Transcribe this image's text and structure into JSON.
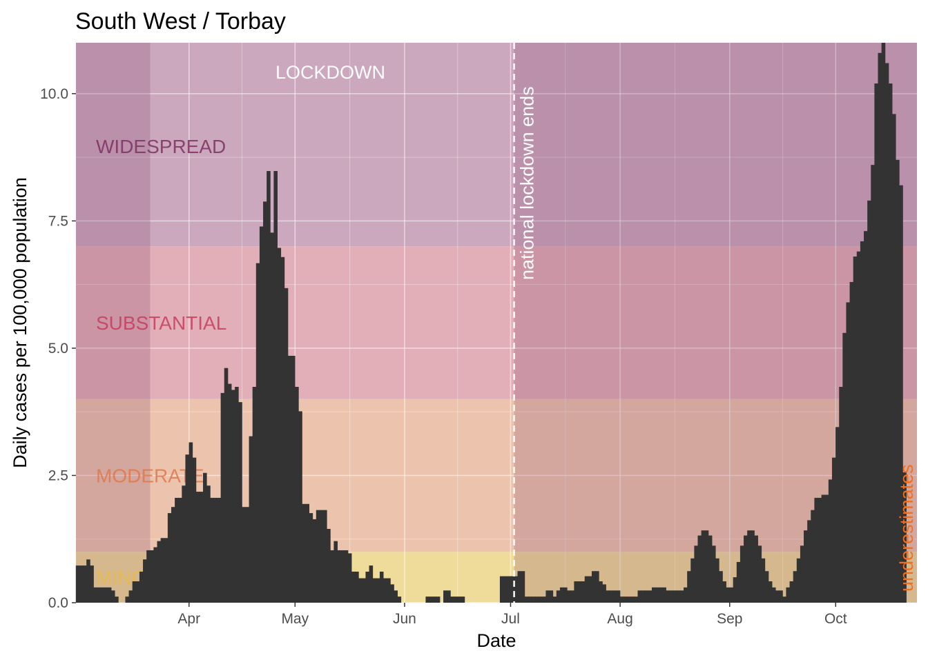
{
  "chart_data": {
    "type": "bar",
    "title": "South West / Torbay",
    "xlabel": "Date",
    "ylabel": "Daily cases per 100,000 population",
    "ylim": [
      0,
      11
    ],
    "yticks": [
      0,
      2.5,
      5,
      7.5,
      10
    ],
    "ytick_labels": [
      "0.0",
      "2.5",
      "5.0",
      "7.5",
      "10.0"
    ],
    "xlim": [
      0,
      238
    ],
    "xticks": [
      {
        "label": "Apr",
        "day": 32
      },
      {
        "label": "May",
        "day": 62
      },
      {
        "label": "Jun",
        "day": 93
      },
      {
        "label": "Jul",
        "day": 123
      },
      {
        "label": "Aug",
        "day": 154
      },
      {
        "label": "Sep",
        "day": 185
      },
      {
        "label": "Oct",
        "day": 215
      }
    ],
    "bands": [
      {
        "label": "MINOR",
        "from": 0,
        "to": 1,
        "color": "#f0dc9a",
        "text_color": "#e8b84a"
      },
      {
        "label": "MODERATE",
        "from": 1,
        "to": 4,
        "color": "#ecc4ae",
        "text_color": "#e07848"
      },
      {
        "label": "SUBSTANTIAL",
        "from": 4,
        "to": 7,
        "color": "#e2afb8",
        "text_color": "#c83c5c"
      },
      {
        "label": "WIDESPREAD",
        "from": 7,
        "to": 11,
        "color": "#cca8be",
        "text_color": "#7c3060"
      }
    ],
    "shading": [
      {
        "label": "",
        "from_day": 0,
        "to_day": 21,
        "color": "#7a3a68",
        "opacity": 0.22
      },
      {
        "label": "LOCKDOWN",
        "from_day": 21,
        "to_day": 123,
        "color": "#ffffff",
        "opacity": 0.0
      },
      {
        "label": "",
        "from_day": 124,
        "to_day": 238,
        "color": "#7a3a68",
        "opacity": 0.22
      }
    ],
    "vline": {
      "day": 124,
      "label": "national lockdown ends"
    },
    "underestimate_label": "underestimates",
    "bar_color": "#333333",
    "values": [
      0.73,
      0.73,
      0.73,
      0.85,
      0.73,
      0.3,
      0.3,
      0.3,
      0.3,
      0.3,
      0.24,
      0.12,
      0,
      0,
      0.12,
      0.24,
      0.42,
      0.42,
      0.61,
      0.85,
      1.03,
      1.03,
      1.09,
      1.21,
      1.27,
      1.27,
      1.76,
      1.88,
      2.06,
      2.06,
      2.3,
      2.91,
      3.15,
      2.85,
      2.18,
      2.18,
      2.55,
      2.3,
      2.06,
      2.06,
      2.06,
      4.12,
      4.61,
      4.3,
      4.18,
      4.24,
      3.94,
      1.88,
      1.88,
      3.27,
      4.24,
      6.67,
      7.39,
      7.88,
      8.48,
      7.27,
      8.48,
      6.97,
      6.79,
      6.18,
      4.85,
      4.85,
      4.24,
      3.76,
      1.94,
      1.94,
      1.76,
      1.64,
      1.82,
      1.82,
      1.82,
      1.45,
      1.03,
      1.21,
      1.03,
      1.03,
      1.03,
      0.97,
      0.61,
      0.61,
      0.48,
      0.48,
      0.61,
      0.73,
      0.48,
      0.48,
      0.61,
      0.48,
      0.48,
      0.36,
      0.24,
      0.12,
      0,
      0,
      0,
      0,
      0,
      0,
      0,
      0.12,
      0.12,
      0.12,
      0.12,
      0,
      0.24,
      0.24,
      0.12,
      0.12,
      0.12,
      0.12,
      0,
      0,
      0,
      0,
      0,
      0,
      0,
      0,
      0,
      0,
      0.52,
      0.52,
      0.52,
      0.52,
      0.52,
      0.62,
      0.62,
      0.12,
      0.12,
      0.12,
      0.12,
      0.12,
      0.12,
      0.24,
      0.24,
      0.12,
      0.24,
      0.3,
      0.3,
      0.24,
      0.24,
      0.42,
      0.42,
      0.42,
      0.52,
      0.52,
      0.62,
      0.62,
      0.42,
      0.36,
      0.24,
      0.24,
      0.24,
      0.24,
      0.12,
      0.12,
      0.12,
      0.12,
      0.12,
      0.24,
      0.24,
      0.24,
      0.24,
      0.3,
      0.3,
      0.3,
      0.3,
      0.24,
      0.24,
      0.24,
      0.24,
      0.24,
      0.3,
      0.62,
      0.87,
      1.12,
      1.32,
      1.42,
      1.42,
      1.32,
      1.12,
      0.87,
      0.62,
      0.42,
      0.3,
      0.3,
      0.5,
      0.8,
      1.12,
      1.32,
      1.42,
      1.42,
      1.32,
      1.12,
      0.87,
      0.62,
      0.42,
      0.3,
      0.24,
      0.24,
      0.12,
      0.3,
      0.42,
      0.62,
      0.87,
      1.12,
      1.42,
      1.62,
      1.82,
      2.06,
      2.06,
      2.12,
      2.12,
      2.42,
      2.85,
      3.45,
      4.24,
      5.3,
      5.9,
      6.3,
      6.8,
      6.9,
      7.1,
      7.3,
      7.9,
      8.6,
      10.2,
      10.8,
      11.0,
      10.6,
      10.2,
      9.6,
      8.7,
      8.2,
      2.56
    ]
  }
}
